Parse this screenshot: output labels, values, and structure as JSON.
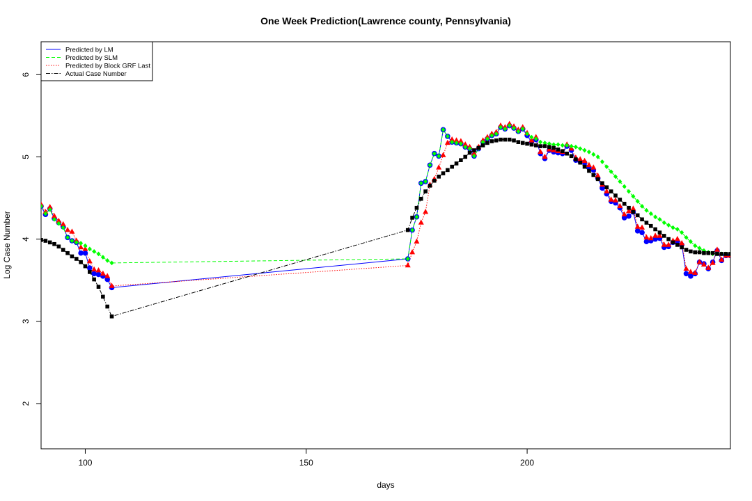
{
  "chart_data": {
    "type": "line",
    "title": "One Week Prediction(Lawrence county, Pennsylvania)",
    "xlabel": "days",
    "ylabel": "Log Case Number",
    "xlim": [
      90,
      246
    ],
    "ylim": [
      1.45,
      6.4
    ],
    "x_ticks": [
      100,
      150,
      200
    ],
    "y_ticks": [
      2,
      3,
      4,
      5,
      6
    ],
    "grid": false,
    "legend_position": "top-left",
    "colors": {
      "lm": "#0000ff",
      "slm": "#00ff00",
      "grf": "#ff0000",
      "actual": "#000000",
      "cyan_connector": "#00a0a0"
    },
    "series": [
      {
        "name": "Predicted by LM",
        "x": [
          90,
          91,
          92,
          93,
          94,
          95,
          96,
          97,
          98,
          99,
          100,
          101,
          102,
          103,
          104,
          105,
          106,
          173,
          174,
          175,
          176,
          177,
          178,
          179,
          180,
          181,
          182,
          183,
          184,
          185,
          186,
          187,
          188,
          189,
          190,
          191,
          192,
          193,
          194,
          195,
          196,
          197,
          198,
          199,
          200,
          201,
          202,
          203,
          204,
          205,
          206,
          207,
          208,
          209,
          210,
          211,
          212,
          213,
          214,
          215,
          216,
          217,
          218,
          219,
          220,
          221,
          222,
          223,
          224,
          225,
          226,
          227,
          228,
          229,
          230,
          231,
          232,
          233,
          234,
          235,
          236,
          237,
          238,
          239,
          240,
          241,
          242,
          243,
          244,
          245,
          246
        ],
        "values": [
          4.4,
          4.3,
          4.37,
          4.25,
          4.2,
          4.15,
          4.02,
          3.98,
          3.96,
          3.83,
          3.83,
          3.65,
          3.58,
          3.57,
          3.55,
          3.51,
          3.41,
          3.76,
          4.11,
          4.27,
          4.68,
          4.7,
          4.9,
          5.04,
          5.01,
          5.33,
          5.25,
          5.18,
          5.17,
          5.16,
          5.12,
          5.1,
          5.01,
          5.1,
          5.18,
          5.22,
          5.26,
          5.28,
          5.36,
          5.34,
          5.38,
          5.35,
          5.31,
          5.34,
          5.26,
          5.18,
          5.21,
          5.04,
          4.98,
          5.08,
          5.06,
          5.05,
          5.04,
          5.13,
          5.08,
          4.96,
          4.94,
          4.93,
          4.87,
          4.84,
          4.74,
          4.62,
          4.55,
          4.46,
          4.44,
          4.38,
          4.26,
          4.28,
          4.33,
          4.1,
          4.08,
          3.97,
          3.98,
          4.0,
          4.01,
          3.9,
          3.91,
          3.96,
          3.97,
          3.93,
          3.58,
          3.55,
          3.58,
          3.72,
          3.7,
          3.64,
          3.72,
          3.86,
          3.74,
          3.8,
          3.8
        ]
      },
      {
        "name": "Predicted by SLM",
        "x": [
          90,
          91,
          92,
          93,
          94,
          95,
          96,
          97,
          98,
          99,
          100,
          101,
          102,
          103,
          104,
          105,
          106,
          173,
          174,
          175,
          176,
          177,
          178,
          179,
          180,
          181,
          182,
          183,
          184,
          185,
          186,
          187,
          188,
          189,
          190,
          191,
          192,
          193,
          194,
          195,
          196,
          197,
          198,
          199,
          200,
          201,
          202,
          203,
          204,
          205,
          206,
          207,
          208,
          209,
          210,
          211,
          212,
          213,
          214,
          215,
          216,
          217,
          218,
          219,
          220,
          221,
          222,
          223,
          224,
          225,
          226,
          227,
          228,
          229,
          230,
          231,
          232,
          233,
          234,
          235,
          236,
          237,
          238,
          239,
          240,
          241,
          242,
          243,
          244,
          245,
          246
        ],
        "values": [
          4.4,
          4.31,
          4.36,
          4.24,
          4.19,
          4.14,
          4.02,
          3.98,
          3.96,
          3.95,
          3.92,
          3.88,
          3.85,
          3.82,
          3.78,
          3.74,
          3.71,
          3.76,
          4.11,
          4.27,
          4.68,
          4.7,
          4.9,
          5.04,
          5.01,
          5.33,
          5.25,
          5.18,
          5.17,
          5.16,
          5.12,
          5.1,
          5.01,
          5.1,
          5.18,
          5.22,
          5.26,
          5.28,
          5.36,
          5.34,
          5.38,
          5.35,
          5.31,
          5.34,
          5.28,
          5.24,
          5.22,
          5.18,
          5.17,
          5.16,
          5.15,
          5.15,
          5.14,
          5.14,
          5.13,
          5.12,
          5.1,
          5.08,
          5.06,
          5.03,
          5.0,
          4.94,
          4.88,
          4.82,
          4.76,
          4.7,
          4.64,
          4.58,
          4.52,
          4.46,
          4.4,
          4.35,
          4.31,
          4.27,
          4.24,
          4.2,
          4.17,
          4.14,
          4.12,
          4.08,
          4.02,
          3.97,
          3.92,
          3.89,
          3.86,
          3.84,
          3.82,
          3.82,
          3.82,
          3.82,
          3.82
        ]
      },
      {
        "name": "Predicted by Block GRF Last",
        "x": [
          90,
          91,
          92,
          93,
          94,
          95,
          96,
          97,
          98,
          99,
          100,
          101,
          102,
          103,
          104,
          105,
          106,
          173,
          174,
          175,
          176,
          177,
          178,
          179,
          180,
          181,
          182,
          183,
          184,
          185,
          186,
          187,
          188,
          189,
          190,
          191,
          192,
          193,
          194,
          195,
          196,
          197,
          198,
          199,
          200,
          201,
          202,
          203,
          204,
          205,
          206,
          207,
          208,
          209,
          210,
          211,
          212,
          213,
          214,
          215,
          216,
          217,
          218,
          219,
          220,
          221,
          222,
          223,
          224,
          225,
          226,
          227,
          228,
          229,
          230,
          231,
          232,
          233,
          234,
          235,
          236,
          237,
          238,
          239,
          240,
          241,
          242,
          243,
          244,
          245,
          246
        ],
        "values": [
          4.42,
          4.33,
          4.39,
          4.28,
          4.22,
          4.18,
          4.11,
          4.09,
          3.98,
          3.9,
          3.88,
          3.73,
          3.63,
          3.62,
          3.58,
          3.55,
          3.43,
          3.68,
          3.84,
          3.97,
          4.2,
          4.33,
          4.66,
          4.73,
          4.87,
          5.02,
          5.17,
          5.21,
          5.2,
          5.19,
          5.15,
          5.12,
          5.04,
          5.12,
          5.2,
          5.24,
          5.28,
          5.3,
          5.38,
          5.36,
          5.4,
          5.37,
          5.33,
          5.36,
          5.29,
          5.2,
          5.24,
          5.06,
          5.0,
          5.09,
          5.08,
          5.07,
          5.06,
          5.15,
          5.1,
          4.99,
          4.97,
          4.95,
          4.9,
          4.87,
          4.77,
          4.66,
          4.58,
          4.48,
          4.47,
          4.4,
          4.3,
          4.34,
          4.37,
          4.15,
          4.14,
          4.02,
          4.01,
          4.04,
          4.04,
          3.93,
          3.93,
          3.98,
          4.0,
          3.95,
          3.64,
          3.6,
          3.59,
          3.72,
          3.69,
          3.65,
          3.71,
          3.87,
          3.75,
          3.8,
          3.8
        ]
      },
      {
        "name": "Actual Case Number",
        "x": [
          90,
          91,
          92,
          93,
          94,
          95,
          96,
          97,
          98,
          99,
          100,
          101,
          102,
          103,
          104,
          105,
          106,
          173,
          174,
          175,
          176,
          177,
          178,
          179,
          180,
          181,
          182,
          183,
          184,
          185,
          186,
          187,
          188,
          189,
          190,
          191,
          192,
          193,
          194,
          195,
          196,
          197,
          198,
          199,
          200,
          201,
          202,
          203,
          204,
          205,
          206,
          207,
          208,
          209,
          210,
          211,
          212,
          213,
          214,
          215,
          216,
          217,
          218,
          219,
          220,
          221,
          222,
          223,
          224,
          225,
          226,
          227,
          228,
          229,
          230,
          231,
          232,
          233,
          234,
          235,
          236,
          237,
          238,
          239,
          240,
          241,
          242,
          243,
          244,
          245,
          246
        ],
        "values": [
          3.99,
          3.98,
          3.96,
          3.94,
          3.91,
          3.87,
          3.83,
          3.79,
          3.76,
          3.72,
          3.67,
          3.6,
          3.51,
          3.42,
          3.3,
          3.18,
          3.06,
          4.11,
          4.26,
          4.38,
          4.49,
          4.58,
          4.65,
          4.71,
          4.76,
          4.8,
          4.84,
          4.88,
          4.92,
          4.96,
          5.0,
          5.05,
          5.08,
          5.11,
          5.14,
          5.17,
          5.19,
          5.2,
          5.21,
          5.21,
          5.21,
          5.2,
          5.18,
          5.17,
          5.16,
          5.15,
          5.14,
          5.13,
          5.13,
          5.12,
          5.11,
          5.09,
          5.07,
          5.04,
          5.01,
          4.97,
          4.93,
          4.88,
          4.83,
          4.78,
          4.73,
          4.68,
          4.63,
          4.58,
          4.53,
          4.48,
          4.43,
          4.38,
          4.33,
          4.29,
          4.24,
          4.2,
          4.16,
          4.12,
          4.08,
          4.04,
          4.0,
          3.96,
          3.93,
          3.9,
          3.87,
          3.85,
          3.84,
          3.84,
          3.83,
          3.83,
          3.83,
          3.82,
          3.82,
          3.82,
          3.82
        ]
      }
    ]
  }
}
